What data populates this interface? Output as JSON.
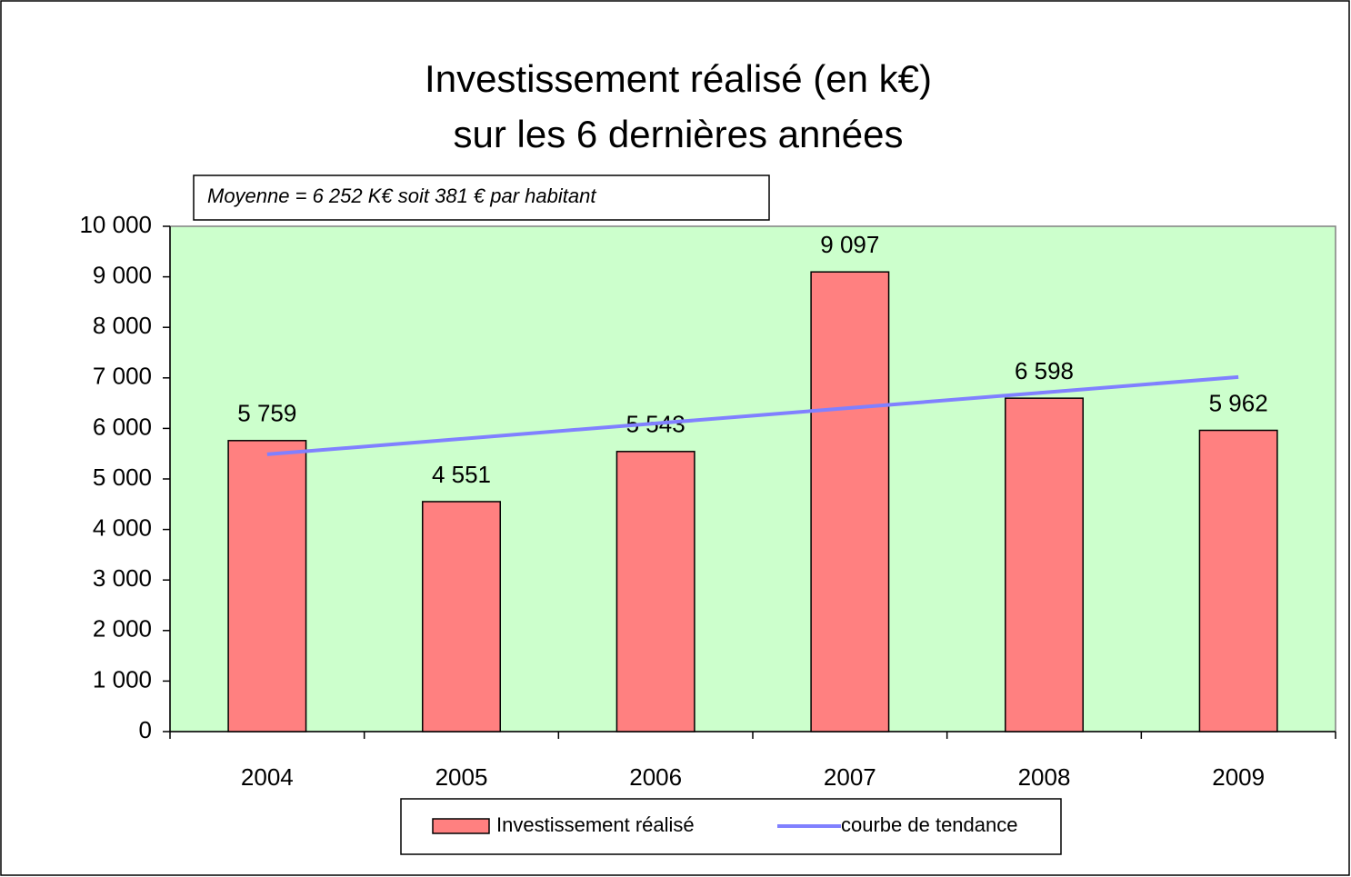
{
  "chart_data": {
    "type": "bar",
    "title": "Investissement réalisé (en k€)",
    "subtitle": "sur les 6 dernières années",
    "annotation": "Moyenne = 6 252 K€ soit 381 € par habitant",
    "categories": [
      "2004",
      "2005",
      "2006",
      "2007",
      "2008",
      "2009"
    ],
    "series": [
      {
        "name": "Investissement réalisé",
        "color": "#ff8080",
        "values": [
          5759,
          4551,
          5543,
          9097,
          6598,
          5962
        ],
        "value_labels": [
          "5 759",
          "4 551",
          "5 543",
          "9 097",
          "6 598",
          "5 962"
        ]
      },
      {
        "name": "courbe de tendance",
        "color": "#8080ff",
        "type": "line",
        "values": [
          5487,
          5793,
          6099,
          6405,
          6711,
          7017
        ]
      }
    ],
    "ylim": [
      0,
      10000
    ],
    "yticks": [
      0,
      {
        "value": 1000,
        "label": "1 000"
      },
      {
        "value": 2000,
        "label": "2 000"
      },
      {
        "value": 3000,
        "label": "3 000"
      },
      {
        "value": 4000,
        "label": "4 000"
      },
      {
        "value": 5000,
        "label": "5 000"
      },
      {
        "value": 6000,
        "label": "6 000"
      },
      {
        "value": 7000,
        "label": "7 000"
      },
      {
        "value": 8000,
        "label": "8 000"
      },
      {
        "value": 9000,
        "label": "9 000"
      },
      {
        "value": 10000,
        "label": "10 000"
      }
    ],
    "plot_background": "#ccffcc",
    "legend": "bottom"
  }
}
